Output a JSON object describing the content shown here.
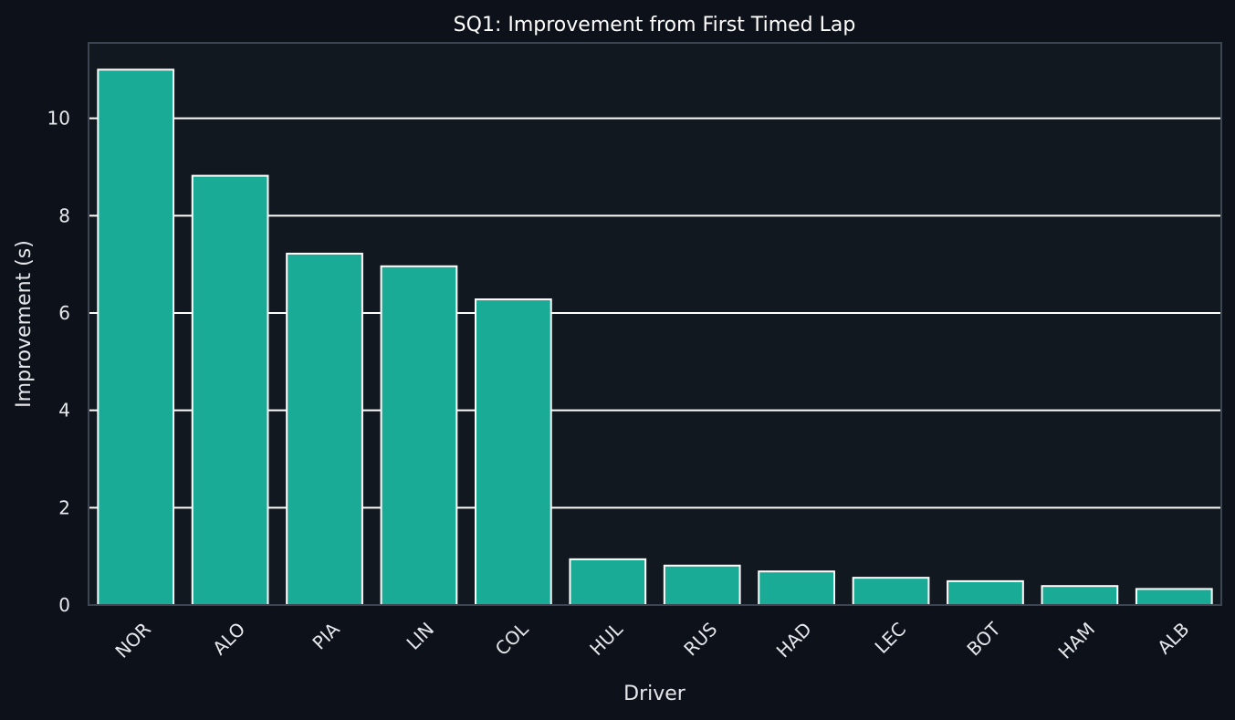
{
  "chart_data": {
    "type": "bar",
    "title": "SQ1: Improvement from First Timed Lap",
    "xlabel": "Driver",
    "ylabel": "Improvement (s)",
    "categories": [
      "NOR",
      "ALO",
      "PIA",
      "LIN",
      "COL",
      "HUL",
      "RUS",
      "HAD",
      "LEC",
      "BOT",
      "HAM",
      "ALB"
    ],
    "values": [
      11.0,
      8.82,
      7.22,
      6.96,
      6.28,
      0.94,
      0.81,
      0.69,
      0.56,
      0.49,
      0.39,
      0.33
    ],
    "ylim": [
      0,
      11.55
    ],
    "yticks": [
      "0",
      "2",
      "4",
      "6",
      "8",
      "10"
    ],
    "grid": "horizontal",
    "colors": {
      "background": "#0d1119",
      "plot_background": "#121820",
      "bar_fill": "#1aab97",
      "bar_edge": "#ffffff",
      "grid": "#ffffff",
      "frame": "#3d4452"
    }
  }
}
